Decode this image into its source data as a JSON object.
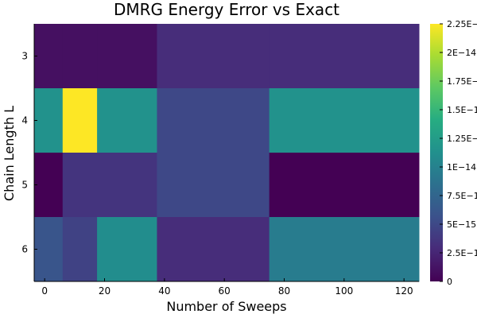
{
  "chart_data": {
    "type": "heatmap",
    "title": "DMRG Energy Error vs Exact",
    "xlabel": "Number of Sweeps",
    "ylabel": "Chain Length L",
    "x_edges": [
      -3.5,
      6,
      17.5,
      37.5,
      75,
      125
    ],
    "x_ticks": [
      0,
      20,
      40,
      60,
      80,
      100,
      120
    ],
    "x_tick_labels": [
      "0",
      "20",
      "40",
      "60",
      "80",
      "100",
      "120"
    ],
    "y_categories": [
      "3",
      "4",
      "5",
      "6"
    ],
    "values_e14": [
      [
        0.1,
        0.1,
        0.1,
        0.3,
        0.3
      ],
      [
        1.15,
        2.25,
        1.15,
        0.5,
        1.15
      ],
      [
        0.0,
        0.35,
        0.35,
        0.5,
        0.0
      ],
      [
        0.6,
        0.45,
        1.1,
        0.3,
        0.95
      ]
    ],
    "value_unit_exponent": -14,
    "colorbar": {
      "min": 0,
      "max": 2.25,
      "colormap": "viridis",
      "tick_values": [
        0,
        0.25,
        0.5,
        0.75,
        1.0,
        1.25,
        1.5,
        1.75,
        2.0,
        2.25
      ],
      "tick_labels": [
        "0",
        "2.5E−15",
        "5E−15",
        "7.5E−15",
        "1E−14",
        "1.25E−14",
        "1.5E−14",
        "1.75E−14",
        "2E−14",
        "2.25E−14"
      ]
    },
    "grid": false,
    "legend": "colorbar-right"
  }
}
